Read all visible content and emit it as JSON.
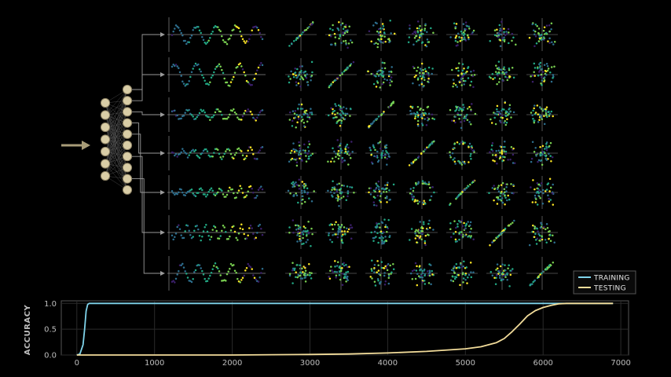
{
  "colors": {
    "background": "#000000",
    "training": "#7fd3ea",
    "testing": "#f2dc9a",
    "node_fill": "#d9cda6",
    "node_stroke": "#8a7f62",
    "connector": "#9a9a9a",
    "axis": "#8c8c8c",
    "arrow": "#a89c78",
    "point_colormap": [
      "#3b1f6b",
      "#2d6f8e",
      "#22a884",
      "#7ad151",
      "#fde725"
    ]
  },
  "network": {
    "input_arrow_icon": "right-arrow-icon",
    "layer_sizes": [
      7,
      10
    ]
  },
  "panels": {
    "rows": 7,
    "scatter_columns": 7,
    "diagonal_style": "identity-line"
  },
  "chart_data": {
    "type": "line",
    "ylabel": "ACCURACY",
    "xlabel": "",
    "xlim": [
      -200,
      7100
    ],
    "ylim": [
      0,
      1.05
    ],
    "x_ticks": [
      "0",
      "1000",
      "2000",
      "3000",
      "4000",
      "5000",
      "6000",
      "7000"
    ],
    "y_ticks": [
      "0.0",
      "0.5",
      "1.0"
    ],
    "grid": true,
    "legend": {
      "placement": "upper-right",
      "entries": [
        "TRAINING",
        "TESTING"
      ]
    },
    "series": [
      {
        "name": "TRAINING",
        "x": [
          0,
          40,
          80,
          100,
          120,
          140,
          160,
          200,
          1000,
          3000,
          5000,
          6000,
          6900
        ],
        "y": [
          0.0,
          0.02,
          0.2,
          0.5,
          0.85,
          0.98,
          1.0,
          1.0,
          1.0,
          1.0,
          1.0,
          1.0,
          1.0
        ]
      },
      {
        "name": "TESTING",
        "x": [
          0,
          1000,
          2000,
          3000,
          3500,
          4000,
          4500,
          5000,
          5200,
          5400,
          5500,
          5600,
          5700,
          5800,
          5900,
          6000,
          6100,
          6200,
          6300,
          6500,
          6900
        ],
        "y": [
          0.0,
          0.0,
          0.0,
          0.01,
          0.02,
          0.04,
          0.07,
          0.12,
          0.16,
          0.24,
          0.32,
          0.45,
          0.6,
          0.76,
          0.86,
          0.92,
          0.96,
          0.99,
          1.0,
          1.0,
          1.0
        ]
      }
    ]
  }
}
